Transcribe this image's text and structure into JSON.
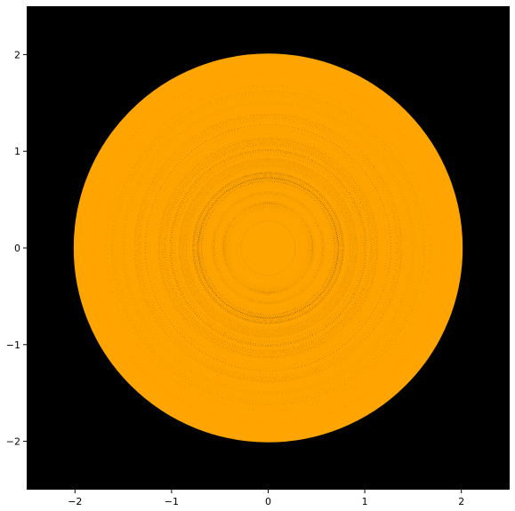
{
  "chart_data": {
    "type": "line",
    "title": "",
    "xlabel": "",
    "ylabel": "",
    "xlim": [
      -2.5,
      2.5
    ],
    "ylim": [
      -2.5,
      2.5
    ],
    "xticks": [
      -2,
      -1,
      0,
      1,
      2
    ],
    "yticks": [
      -2,
      -1,
      0,
      1,
      2
    ],
    "xtick_labels": [
      "−2",
      "−1",
      "0",
      "1",
      "2"
    ],
    "ytick_labels": [
      "−2",
      "−1",
      "0",
      "1",
      "2"
    ],
    "grid": false,
    "legend": "none",
    "series": [
      {
        "kind": "chords-in-circle",
        "circle_radius": 2.0,
        "center": [
          0,
          0
        ]
      }
    ]
  },
  "colors": {
    "background": "#000000",
    "line": "#ffa500",
    "axes": "#000000",
    "figure": "#ffffff"
  }
}
